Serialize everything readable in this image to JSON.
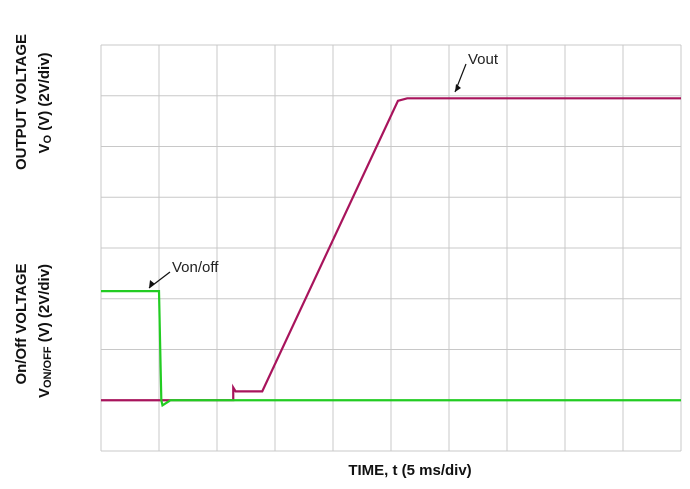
{
  "chart_data": {
    "type": "line",
    "xlabel": "TIME, t (5 ms/div)",
    "ylabels": [
      {
        "title": "OUTPUT VOLTAGE",
        "main": "V",
        "sub": "O",
        "rest": " (V) (2V/div)"
      },
      {
        "title": "On/Off VOLTAGE",
        "main": "V",
        "sub": "ON/OFF",
        "rest": " (V) (2V/div)"
      }
    ],
    "xlim": [
      0,
      50
    ],
    "ylim": [
      -2,
      14
    ],
    "xticks": [
      0,
      5,
      10,
      15,
      20,
      25,
      30,
      35,
      40,
      45,
      50
    ],
    "yticks": [
      -2,
      0,
      2,
      4,
      6,
      8,
      10,
      12,
      14
    ],
    "grid": true,
    "series": [
      {
        "name": "Vout",
        "color": "#a8145c",
        "x": [
          0,
          11.4,
          11.4,
          11.6,
          13.9,
          25.6,
          26.4,
          50
        ],
        "values": [
          0,
          0,
          0.5,
          0.35,
          0.35,
          11.8,
          11.9,
          11.9
        ]
      },
      {
        "name": "Von/off",
        "color": "#22cc22",
        "x": [
          0,
          5,
          5.2,
          5.3,
          6,
          50
        ],
        "values": [
          4.3,
          4.3,
          0,
          -0.2,
          0,
          0
        ]
      }
    ]
  }
}
